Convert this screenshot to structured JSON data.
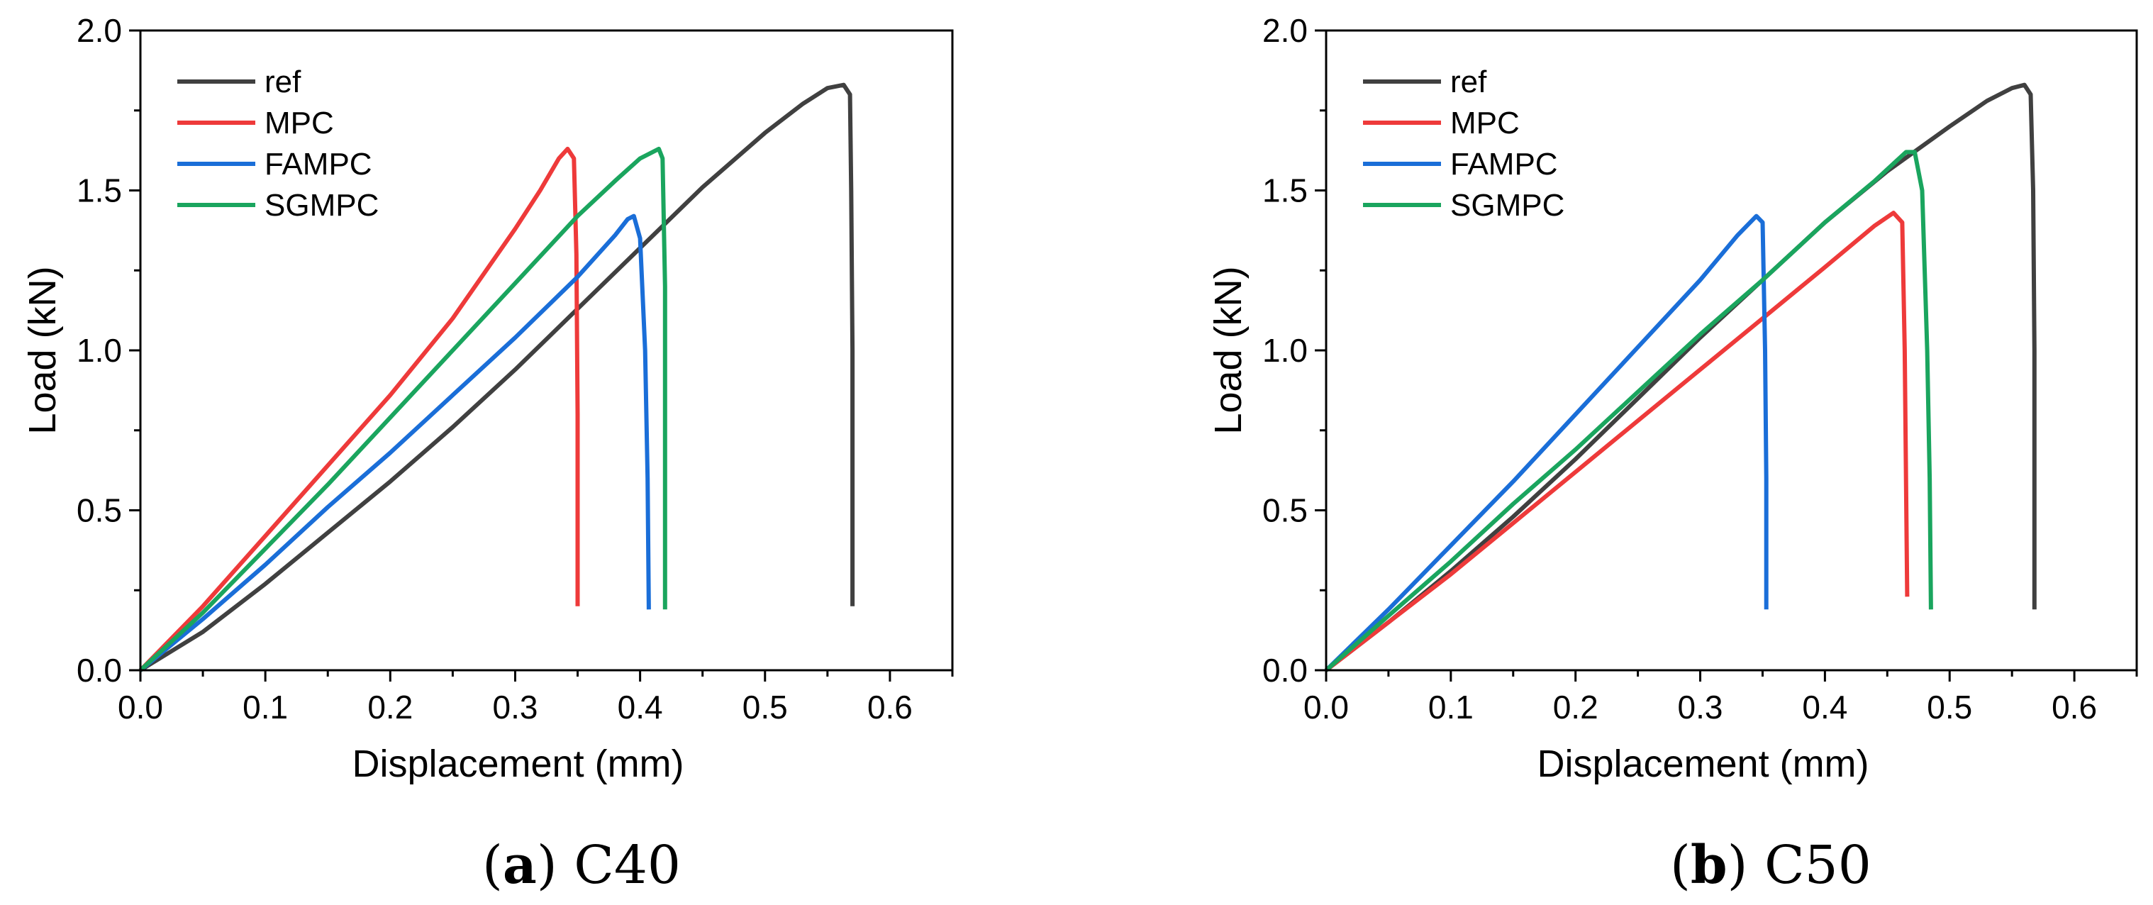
{
  "chart_data": [
    {
      "type": "line",
      "caption": {
        "letter": "a",
        "text": "C40"
      },
      "xlabel": "Displacement (mm)",
      "ylabel": "Load (kN)",
      "xlim": [
        0,
        0.65
      ],
      "ylim": [
        0,
        2.0
      ],
      "xticks": [
        0.0,
        0.1,
        0.2,
        0.3,
        0.4,
        0.5,
        0.6
      ],
      "xtick_labels": [
        "0.0",
        "0.1",
        "0.2",
        "0.3",
        "0.4",
        "0.5",
        "0.6"
      ],
      "yticks": [
        0.0,
        0.5,
        1.0,
        1.5,
        2.0
      ],
      "ytick_labels": [
        "0.0",
        "0.5",
        "1.0",
        "1.5",
        "2.0"
      ],
      "legend": "top-left",
      "grid": false,
      "series": [
        {
          "name": "ref",
          "color": "#404040",
          "points": [
            [
              0,
              0
            ],
            [
              0.05,
              0.12
            ],
            [
              0.1,
              0.27
            ],
            [
              0.15,
              0.43
            ],
            [
              0.2,
              0.59
            ],
            [
              0.25,
              0.76
            ],
            [
              0.3,
              0.94
            ],
            [
              0.35,
              1.13
            ],
            [
              0.4,
              1.32
            ],
            [
              0.45,
              1.51
            ],
            [
              0.5,
              1.68
            ],
            [
              0.53,
              1.77
            ],
            [
              0.55,
              1.82
            ],
            [
              0.563,
              1.83
            ],
            [
              0.568,
              1.8
            ],
            [
              0.569,
              1.5
            ],
            [
              0.57,
              1.0
            ],
            [
              0.57,
              0.2
            ]
          ]
        },
        {
          "name": "MPC",
          "color": "#ee3a3a",
          "points": [
            [
              0,
              0
            ],
            [
              0.05,
              0.2
            ],
            [
              0.1,
              0.42
            ],
            [
              0.15,
              0.64
            ],
            [
              0.2,
              0.86
            ],
            [
              0.25,
              1.1
            ],
            [
              0.3,
              1.38
            ],
            [
              0.32,
              1.5
            ],
            [
              0.335,
              1.6
            ],
            [
              0.342,
              1.63
            ],
            [
              0.347,
              1.6
            ],
            [
              0.349,
              1.3
            ],
            [
              0.35,
              0.8
            ],
            [
              0.35,
              0.2
            ]
          ]
        },
        {
          "name": "FAMPC",
          "color": "#1a6ed8",
          "points": [
            [
              0,
              0
            ],
            [
              0.05,
              0.16
            ],
            [
              0.1,
              0.33
            ],
            [
              0.15,
              0.51
            ],
            [
              0.2,
              0.68
            ],
            [
              0.25,
              0.86
            ],
            [
              0.3,
              1.04
            ],
            [
              0.35,
              1.23
            ],
            [
              0.38,
              1.36
            ],
            [
              0.39,
              1.41
            ],
            [
              0.395,
              1.42
            ],
            [
              0.4,
              1.35
            ],
            [
              0.404,
              1.0
            ],
            [
              0.406,
              0.6
            ],
            [
              0.407,
              0.19
            ]
          ]
        },
        {
          "name": "SGMPC",
          "color": "#1aa55e",
          "points": [
            [
              0,
              0
            ],
            [
              0.05,
              0.18
            ],
            [
              0.1,
              0.38
            ],
            [
              0.15,
              0.58
            ],
            [
              0.2,
              0.79
            ],
            [
              0.25,
              1.0
            ],
            [
              0.3,
              1.21
            ],
            [
              0.35,
              1.42
            ],
            [
              0.38,
              1.53
            ],
            [
              0.4,
              1.6
            ],
            [
              0.41,
              1.62
            ],
            [
              0.415,
              1.63
            ],
            [
              0.418,
              1.6
            ],
            [
              0.42,
              1.2
            ],
            [
              0.42,
              0.19
            ]
          ]
        }
      ]
    },
    {
      "type": "line",
      "caption": {
        "letter": "b",
        "text": "C50"
      },
      "xlabel": "Displacement (mm)",
      "ylabel": "Load (kN)",
      "xlim": [
        0,
        0.65
      ],
      "ylim": [
        0,
        2.0
      ],
      "xticks": [
        0.0,
        0.1,
        0.2,
        0.3,
        0.4,
        0.5,
        0.6
      ],
      "xtick_labels": [
        "0.0",
        "0.1",
        "0.2",
        "0.3",
        "0.4",
        "0.5",
        "0.6"
      ],
      "yticks": [
        0.0,
        0.5,
        1.0,
        1.5,
        2.0
      ],
      "ytick_labels": [
        "0.0",
        "0.5",
        "1.0",
        "1.5",
        "2.0"
      ],
      "legend": "top-left",
      "grid": false,
      "series": [
        {
          "name": "ref",
          "color": "#404040",
          "points": [
            [
              0,
              0
            ],
            [
              0.05,
              0.15
            ],
            [
              0.1,
              0.31
            ],
            [
              0.15,
              0.48
            ],
            [
              0.2,
              0.66
            ],
            [
              0.25,
              0.85
            ],
            [
              0.3,
              1.04
            ],
            [
              0.35,
              1.22
            ],
            [
              0.4,
              1.4
            ],
            [
              0.45,
              1.56
            ],
            [
              0.5,
              1.7
            ],
            [
              0.53,
              1.78
            ],
            [
              0.55,
              1.82
            ],
            [
              0.56,
              1.83
            ],
            [
              0.565,
              1.8
            ],
            [
              0.567,
              1.5
            ],
            [
              0.568,
              1.0
            ],
            [
              0.568,
              0.19
            ]
          ]
        },
        {
          "name": "MPC",
          "color": "#ee3a3a",
          "points": [
            [
              0,
              0
            ],
            [
              0.05,
              0.15
            ],
            [
              0.1,
              0.3
            ],
            [
              0.15,
              0.46
            ],
            [
              0.2,
              0.62
            ],
            [
              0.25,
              0.78
            ],
            [
              0.3,
              0.94
            ],
            [
              0.35,
              1.1
            ],
            [
              0.4,
              1.26
            ],
            [
              0.44,
              1.39
            ],
            [
              0.455,
              1.43
            ],
            [
              0.462,
              1.4
            ],
            [
              0.464,
              1.0
            ],
            [
              0.465,
              0.6
            ],
            [
              0.466,
              0.23
            ]
          ]
        },
        {
          "name": "FAMPC",
          "color": "#1a6ed8",
          "points": [
            [
              0,
              0
            ],
            [
              0.05,
              0.19
            ],
            [
              0.1,
              0.39
            ],
            [
              0.15,
              0.59
            ],
            [
              0.2,
              0.8
            ],
            [
              0.25,
              1.01
            ],
            [
              0.3,
              1.22
            ],
            [
              0.33,
              1.36
            ],
            [
              0.345,
              1.42
            ],
            [
              0.35,
              1.4
            ],
            [
              0.352,
              1.0
            ],
            [
              0.353,
              0.6
            ],
            [
              0.353,
              0.19
            ]
          ]
        },
        {
          "name": "SGMPC",
          "color": "#1aa55e",
          "points": [
            [
              0,
              0
            ],
            [
              0.05,
              0.17
            ],
            [
              0.1,
              0.34
            ],
            [
              0.15,
              0.52
            ],
            [
              0.2,
              0.69
            ],
            [
              0.25,
              0.87
            ],
            [
              0.3,
              1.05
            ],
            [
              0.35,
              1.22
            ],
            [
              0.4,
              1.4
            ],
            [
              0.44,
              1.53
            ],
            [
              0.465,
              1.62
            ],
            [
              0.472,
              1.62
            ],
            [
              0.478,
              1.5
            ],
            [
              0.482,
              1.0
            ],
            [
              0.484,
              0.6
            ],
            [
              0.485,
              0.19
            ]
          ]
        }
      ]
    }
  ]
}
